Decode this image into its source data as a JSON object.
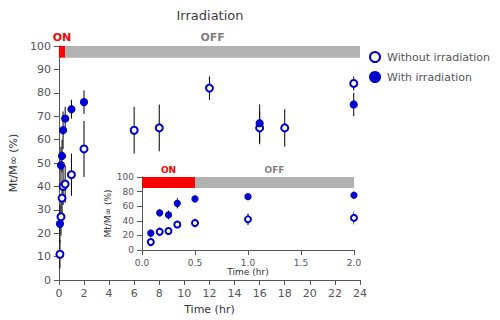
{
  "chart_data": [
    {
      "type": "scatter",
      "title": "Irradiation",
      "xlabel": "Time (hr)",
      "ylabel": "Mt/M∞ (%)",
      "xlim": [
        0,
        24
      ],
      "ylim": [
        0,
        100
      ],
      "xticks": [
        0,
        2,
        4,
        6,
        8,
        10,
        12,
        14,
        16,
        18,
        20,
        22,
        24
      ],
      "yticks": [
        0,
        10,
        20,
        30,
        40,
        50,
        60,
        70,
        80,
        90,
        100
      ],
      "grid": false,
      "legend": "right",
      "series": [
        {
          "name": "Without irradiation",
          "color": "#0000cc",
          "marker": "circle_open",
          "error_color": "#000000",
          "x": [
            0.083,
            0.167,
            0.25,
            0.333,
            0.5,
            1.0,
            2.0,
            6.0,
            8.0,
            12.0,
            16.0,
            18.0,
            23.5
          ],
          "values": [
            11,
            27,
            35,
            40,
            41,
            45,
            56,
            64,
            65,
            82,
            65,
            65,
            84
          ],
          "errors": [
            6,
            8,
            7,
            8,
            8,
            9,
            12,
            10,
            10,
            5,
            7,
            8,
            3
          ]
        },
        {
          "name": "With irradiation",
          "color": "#0000cc",
          "marker": "circle",
          "error_color": "#000000",
          "x": [
            0.083,
            0.167,
            0.25,
            0.333,
            0.5,
            1.0,
            2.0,
            16.0,
            23.5
          ],
          "values": [
            24,
            49,
            53,
            64,
            69,
            73,
            76,
            67,
            75
          ],
          "errors": [
            8,
            8,
            7,
            8,
            5,
            4,
            5,
            8,
            5
          ]
        }
      ],
      "bands": [
        {
          "x": [
            0,
            0.5
          ],
          "y": [
            95,
            100
          ],
          "color": "#ff0000",
          "label": "ON"
        },
        {
          "x": [
            0.5,
            24
          ],
          "y": [
            95,
            100
          ],
          "color": "#b2b2b2",
          "label": "OFF",
          "label_color": "gray"
        }
      ]
    },
    {
      "type": "scatter",
      "xlabel": "Time (hr)",
      "ylabel": "Mt/M∞ (%)",
      "xlim": [
        0,
        2
      ],
      "ylim": [
        0,
        100
      ],
      "xticks": [
        {
          "value": 0,
          "label": "0.0"
        },
        0.5,
        {
          "value": 1.0,
          "label": "1.0"
        },
        1.5,
        {
          "value": 2.0,
          "label": "2.0"
        }
      ],
      "yticks": [
        0,
        20,
        40,
        60,
        80,
        100
      ],
      "grid": false,
      "series": [
        {
          "color": "#0000cc",
          "marker": "circle_open",
          "error_color": "#000000",
          "x": [
            0.083,
            0.167,
            0.25,
            0.333,
            0.5,
            1.0,
            2.0
          ],
          "values": [
            11,
            25,
            26,
            35,
            37,
            42,
            44
          ],
          "errors": [
            6,
            6,
            4,
            5,
            6,
            8,
            9
          ]
        },
        {
          "color": "#0000cc",
          "marker": "circle",
          "error_color": "#000000",
          "x": [
            0.083,
            0.167,
            0.25,
            0.333,
            0.5,
            1.0,
            2.0
          ],
          "values": [
            23,
            51,
            48,
            64,
            70,
            73,
            75
          ],
          "errors": [
            5,
            5,
            6,
            7,
            5,
            4,
            5
          ]
        }
      ],
      "bands": [
        {
          "x": [
            0,
            0.5
          ],
          "y": [
            85,
            100
          ],
          "color": "#ff0000",
          "label": "ON"
        },
        {
          "x": [
            0.5,
            2.0
          ],
          "y": [
            85,
            100
          ],
          "color": "#b2b2b2",
          "label": "OFF",
          "label_color": "gray"
        }
      ]
    }
  ]
}
